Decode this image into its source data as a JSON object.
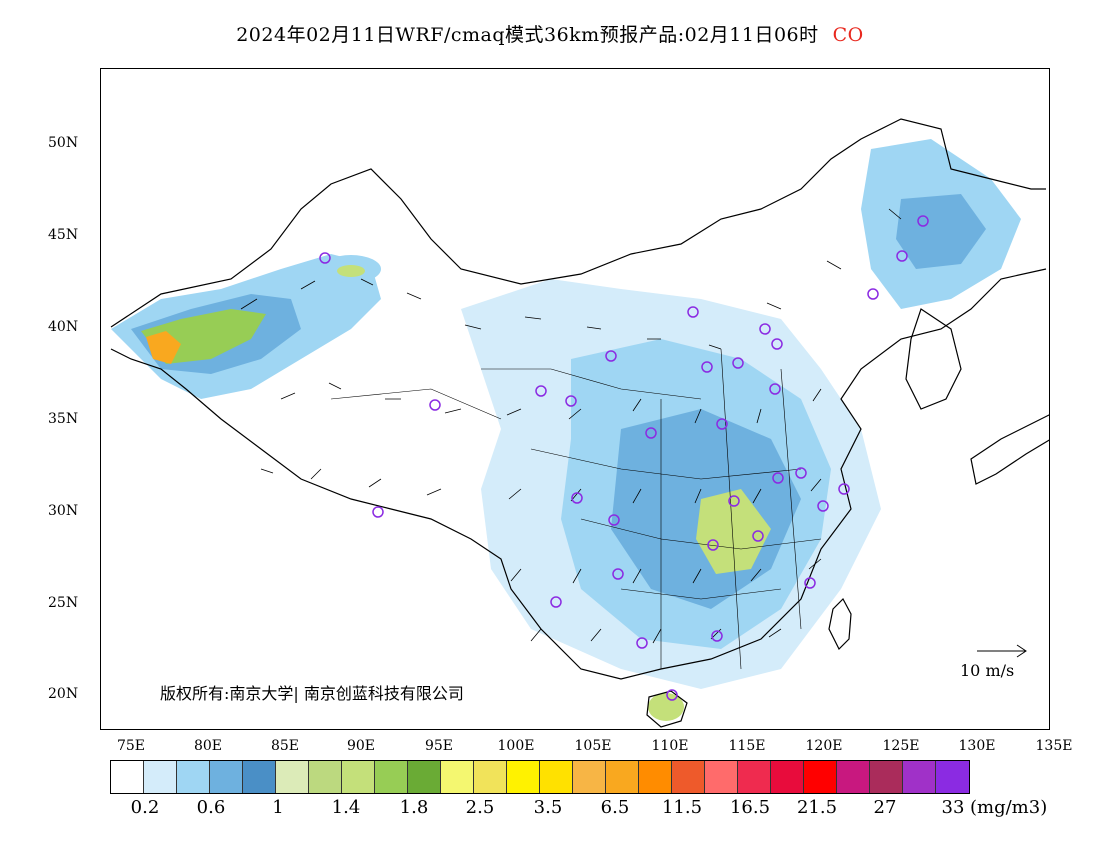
{
  "title": "2024年02月11日WRF/cmaq模式36km预报产品:02月11日06时",
  "species": "CO",
  "map": {
    "lat_ticks": [
      "50N",
      "45N",
      "40N",
      "35N",
      "30N",
      "25N",
      "20N"
    ],
    "lon_ticks": [
      "75E",
      "80E",
      "85E",
      "90E",
      "95E",
      "100E",
      "105E",
      "110E",
      "115E",
      "120E",
      "125E",
      "130E",
      "135E"
    ],
    "copyright": "版权所有:南京大学| 南京创蓝科技有限公司",
    "wind_reference": "10 m/s"
  },
  "colorbar": {
    "colors": [
      "#ffffff",
      "#d4ecfa",
      "#9fd6f3",
      "#6eb1df",
      "#4a8fc6",
      "#dcebb8",
      "#bcd97f",
      "#c4e07a",
      "#97cd55",
      "#6aab35",
      "#f4f770",
      "#f1e35a",
      "#fff200",
      "#ffe100",
      "#f7b545",
      "#f9a81f",
      "#ff8c00",
      "#ee5a2b",
      "#ff6b6b",
      "#ef2b4f",
      "#e80c3c",
      "#ff0000",
      "#c8187f",
      "#aa2c5b",
      "#a031c8",
      "#8b2be2"
    ],
    "labels": [
      "0.2",
      "0.6",
      "1",
      "1.4",
      "1.8",
      "2.5",
      "3.5",
      "6.5",
      "11.5",
      "16.5",
      "21.5",
      "27",
      "33"
    ],
    "unit": "(mg/m3)"
  }
}
